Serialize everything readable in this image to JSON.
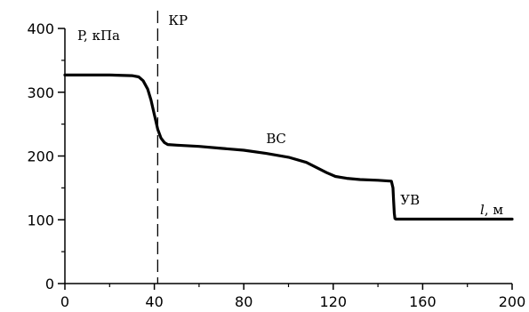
{
  "chart_data": {
    "type": "line",
    "xlim": [
      0,
      200
    ],
    "ylim": [
      0,
      400
    ],
    "x_ticks": [
      0,
      40,
      80,
      120,
      160,
      200
    ],
    "y_ticks": [
      0,
      100,
      200,
      300,
      400
    ],
    "ylabel": "P, кПа",
    "xlabel": "l, м",
    "xlabel_italic_part": "l",
    "xlabel_rest": ", м",
    "grid": false,
    "series": [
      {
        "points": [
          [
            0,
            327
          ],
          [
            20,
            327
          ],
          [
            30,
            326
          ],
          [
            33,
            324
          ],
          [
            35,
            318
          ],
          [
            37,
            305
          ],
          [
            38.5,
            288
          ],
          [
            40,
            265
          ],
          [
            41.5,
            242
          ],
          [
            43,
            228
          ],
          [
            44.5,
            221
          ],
          [
            46,
            218
          ],
          [
            50,
            217
          ],
          [
            60,
            215
          ],
          [
            70,
            212
          ],
          [
            80,
            209
          ],
          [
            90,
            204
          ],
          [
            100,
            198
          ],
          [
            108,
            190
          ],
          [
            113,
            181
          ],
          [
            117,
            174
          ],
          [
            121,
            168
          ],
          [
            126,
            165
          ],
          [
            132,
            163
          ],
          [
            140,
            162
          ],
          [
            146,
            160.5
          ],
          [
            146.7,
            150
          ],
          [
            147,
            130
          ],
          [
            147.3,
            110
          ],
          [
            147.6,
            102
          ],
          [
            148,
            101
          ],
          [
            155,
            101
          ],
          [
            200,
            101
          ]
        ]
      }
    ],
    "reference_lines": [
      {
        "x": 41.5,
        "style": "dashed",
        "label": "КР"
      }
    ],
    "annotations": [
      {
        "text": "ВС",
        "x": 90,
        "y": 220
      },
      {
        "text": "УВ",
        "x": 150,
        "y": 124
      }
    ],
    "colors": {
      "line": "#000000",
      "axis": "#000000",
      "background": "#ffffff"
    }
  }
}
